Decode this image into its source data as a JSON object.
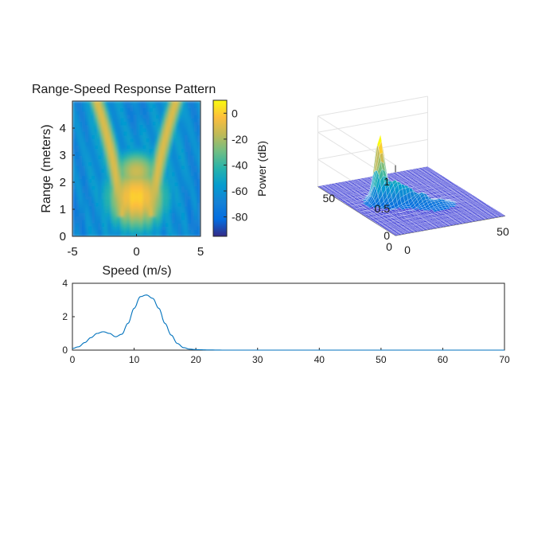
{
  "chart_data": [
    {
      "type": "heatmap",
      "title": "Range-Speed Response Pattern",
      "xlabel": "Speed (m/s)",
      "ylabel": "Range (meters)",
      "xlim": [
        -5,
        5
      ],
      "ylim": [
        0,
        5
      ],
      "x_ticks": [
        -5,
        0,
        5
      ],
      "y_ticks": [
        0,
        1,
        2,
        3,
        4
      ],
      "colorbar": {
        "label": "Power (dB)",
        "range": [
          -95,
          10
        ],
        "ticks": [
          0,
          -20,
          -40,
          -60,
          -80
        ],
        "colormap": "parula"
      },
      "grid": false
    },
    {
      "type": "surface",
      "xlim": [
        0,
        64
      ],
      "ylim": [
        0,
        64
      ],
      "zlim": [
        0,
        1.3
      ],
      "x_ticks": [
        0,
        50
      ],
      "y_ticks": [
        0,
        50
      ],
      "z_ticks": [
        0,
        0.5,
        1
      ],
      "peak": {
        "x": 10,
        "y": 40,
        "z": 1.1
      },
      "grid": true
    },
    {
      "type": "line",
      "xlim": [
        0,
        70
      ],
      "ylim": [
        0,
        4
      ],
      "x_ticks": [
        0,
        10,
        20,
        30,
        40,
        50,
        60,
        70
      ],
      "y_ticks": [
        0,
        2,
        4
      ],
      "series": [
        {
          "x": [
            0,
            1,
            2,
            3,
            4,
            5,
            6,
            7,
            8,
            9,
            10,
            11,
            12,
            13,
            14,
            15,
            16,
            17,
            18,
            19,
            20,
            22,
            25,
            30,
            35,
            40,
            45,
            50,
            55,
            60,
            65,
            70
          ],
          "values": [
            0.1,
            0.2,
            0.45,
            0.75,
            1.0,
            1.1,
            1.0,
            0.8,
            0.95,
            1.6,
            2.5,
            3.2,
            3.3,
            3.1,
            2.5,
            1.6,
            0.9,
            0.4,
            0.15,
            0.06,
            0.03,
            0.01,
            0,
            0,
            0,
            0,
            0,
            0,
            0,
            0,
            0,
            0
          ],
          "color": "#0072BD"
        }
      ],
      "grid": false
    }
  ],
  "colors": {
    "line": "#0072BD",
    "axis": "#262626",
    "surface_face": "#3f3fd6",
    "surface_edge": "#ffffff"
  }
}
